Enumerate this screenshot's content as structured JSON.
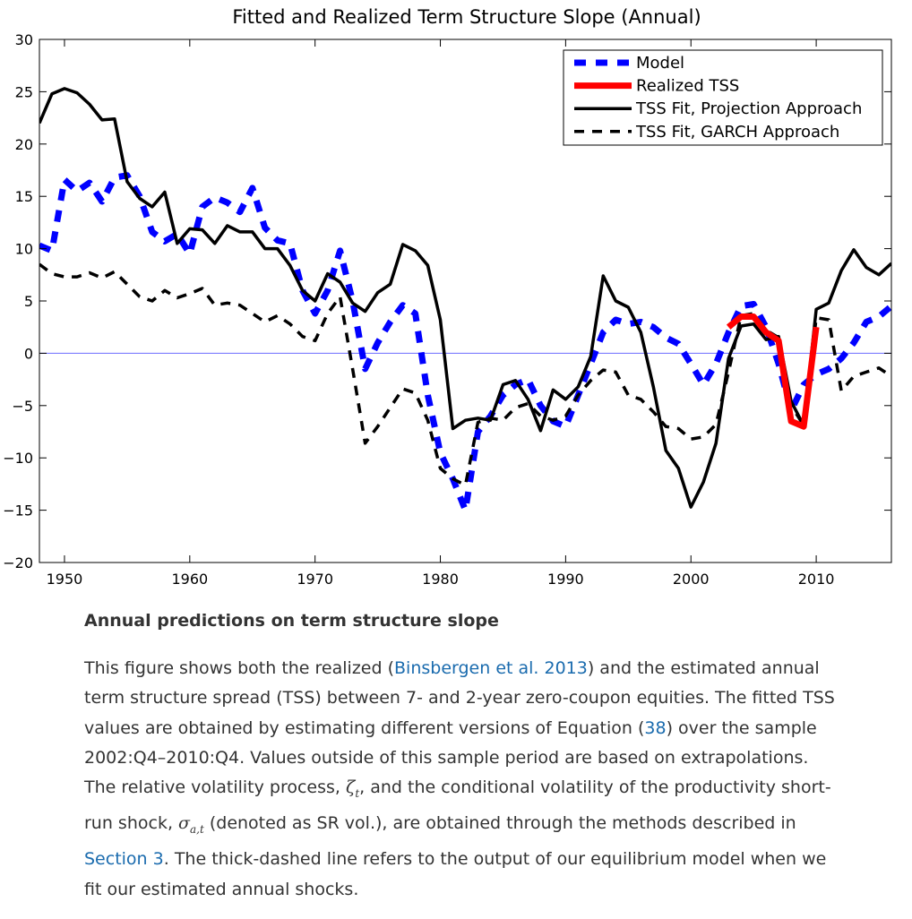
{
  "chart_data": {
    "type": "line",
    "title": "Fitted and Realized Term Structure Slope (Annual)",
    "xlim": [
      1948,
      2016
    ],
    "ylim": [
      -20,
      30
    ],
    "xticks": [
      1950,
      1960,
      1970,
      1980,
      1990,
      2000,
      2010
    ],
    "yticks": [
      -20,
      -15,
      -10,
      -5,
      0,
      5,
      10,
      15,
      20,
      25,
      30
    ],
    "xtick_labels": [
      "1950",
      "1960",
      "1970",
      "1980",
      "1990",
      "2000",
      "2010"
    ],
    "ytick_labels": [
      "−20",
      "−15",
      "−10",
      "−5",
      "0",
      "5",
      "10",
      "15",
      "20",
      "25",
      "30"
    ],
    "zero_line": true,
    "grid": false,
    "legend_position": "top-right",
    "series": [
      {
        "name": "Model",
        "color": "#0000ff",
        "style": "thick-dashed",
        "x": [
          1948,
          1949,
          1950,
          1951,
          1952,
          1953,
          1954,
          1955,
          1956,
          1957,
          1958,
          1959,
          1960,
          1961,
          1962,
          1963,
          1964,
          1965,
          1966,
          1967,
          1968,
          1969,
          1970,
          1971,
          1972,
          1973,
          1974,
          1975,
          1976,
          1977,
          1978,
          1979,
          1980,
          1981,
          1982,
          1983,
          1984,
          1985,
          1986,
          1987,
          1988,
          1989,
          1990,
          1991,
          1992,
          1993,
          1994,
          1995,
          1996,
          1997,
          1998,
          1999,
          2000,
          2001,
          2002,
          2003,
          2004,
          2005,
          2006,
          2007,
          2008,
          2009,
          2010,
          2011,
          2012,
          2013,
          2014,
          2015,
          2016
        ],
        "values": [
          10.3,
          9.8,
          16.6,
          15.5,
          16.3,
          14.5,
          16.8,
          17.0,
          15.0,
          11.6,
          10.7,
          11.4,
          9.5,
          14.0,
          14.9,
          14.4,
          13.5,
          15.8,
          12.0,
          10.8,
          10.5,
          6.0,
          3.8,
          6.0,
          9.8,
          5.0,
          -1.5,
          1.0,
          3.0,
          4.6,
          3.8,
          -4.0,
          -9.5,
          -12.0,
          -15.0,
          -7.5,
          -6.0,
          -4.0,
          -3.0,
          -2.5,
          -5.0,
          -6.5,
          -7.0,
          -4.0,
          -1.0,
          2.0,
          3.2,
          2.8,
          3.0,
          2.5,
          1.5,
          0.9,
          -1.0,
          -3.0,
          -1.0,
          2.0,
          4.5,
          4.7,
          2.5,
          -1.0,
          -5.5,
          -3.0,
          -2.0,
          -1.5,
          -0.5,
          1.0,
          3.0,
          3.5,
          4.5
        ]
      },
      {
        "name": "Realized TSS",
        "color": "#ff0000",
        "style": "thick-solid",
        "x": [
          2003,
          2004,
          2005,
          2006,
          2007,
          2008,
          2009,
          2010
        ],
        "values": [
          2.5,
          3.5,
          3.5,
          2.0,
          1.2,
          -6.5,
          -7.0,
          2.5
        ]
      },
      {
        "name": "TSS Fit, Projection Approach",
        "color": "#000000",
        "style": "solid",
        "x": [
          1948,
          1949,
          1950,
          1951,
          1952,
          1953,
          1954,
          1955,
          1956,
          1957,
          1958,
          1959,
          1960,
          1961,
          1962,
          1963,
          1964,
          1965,
          1966,
          1967,
          1968,
          1969,
          1970,
          1971,
          1972,
          1973,
          1974,
          1975,
          1976,
          1977,
          1978,
          1979,
          1980,
          1981,
          1982,
          1983,
          1984,
          1985,
          1986,
          1987,
          1988,
          1989,
          1990,
          1991,
          1992,
          1993,
          1994,
          1995,
          1996,
          1997,
          1998,
          1999,
          2000,
          2001,
          2002,
          2003,
          2004,
          2005,
          2006,
          2007,
          2008,
          2009,
          2010,
          2011,
          2012,
          2013,
          2014,
          2015,
          2016
        ],
        "values": [
          22.0,
          24.8,
          25.3,
          24.9,
          23.8,
          22.3,
          22.4,
          16.4,
          14.8,
          14.0,
          15.4,
          10.5,
          11.9,
          11.8,
          10.5,
          12.2,
          11.6,
          11.6,
          10.0,
          10.0,
          8.4,
          6.0,
          5.0,
          7.6,
          6.8,
          4.8,
          4.0,
          5.8,
          6.6,
          10.4,
          9.8,
          8.4,
          3.2,
          -7.2,
          -6.4,
          -6.2,
          -6.4,
          -3.0,
          -2.6,
          -4.4,
          -7.4,
          -3.5,
          -4.4,
          -3.2,
          -0.3,
          7.4,
          5.0,
          4.4,
          2.0,
          -3.2,
          -9.3,
          -11.0,
          -14.7,
          -12.3,
          -8.6,
          -0.5,
          2.6,
          2.8,
          1.3,
          1.6,
          -4.6,
          -6.9,
          4.2,
          4.8,
          7.9,
          9.9,
          8.2,
          7.5,
          8.6
        ]
      },
      {
        "name": "TSS Fit, GARCH Approach",
        "color": "#000000",
        "style": "dashed",
        "x": [
          1948,
          1949,
          1950,
          1951,
          1952,
          1953,
          1954,
          1955,
          1956,
          1957,
          1958,
          1959,
          1960,
          1961,
          1962,
          1963,
          1964,
          1965,
          1966,
          1967,
          1968,
          1969,
          1970,
          1971,
          1972,
          1973,
          1974,
          1975,
          1976,
          1977,
          1978,
          1979,
          1980,
          1981,
          1982,
          1983,
          1984,
          1985,
          1986,
          1987,
          1988,
          1989,
          1990,
          1991,
          1992,
          1993,
          1994,
          1995,
          1996,
          1997,
          1998,
          1999,
          2000,
          2001,
          2002,
          2003,
          2004,
          2005,
          2006,
          2007,
          2008,
          2009,
          2010,
          2011,
          2012,
          2013,
          2014,
          2015,
          2016
        ],
        "values": [
          8.5,
          7.6,
          7.3,
          7.3,
          7.7,
          7.2,
          7.8,
          6.6,
          5.4,
          5.0,
          6.0,
          5.3,
          5.7,
          6.2,
          4.6,
          4.8,
          4.6,
          3.8,
          3.0,
          3.6,
          2.8,
          1.6,
          1.2,
          3.8,
          5.4,
          -1.5,
          -8.6,
          -7.0,
          -5.2,
          -3.4,
          -3.8,
          -6.4,
          -11.0,
          -12.0,
          -12.6,
          -6.6,
          -6.2,
          -6.4,
          -5.2,
          -4.8,
          -6.0,
          -6.4,
          -6.0,
          -4.0,
          -2.6,
          -1.6,
          -1.8,
          -4.0,
          -4.4,
          -5.6,
          -7.0,
          -7.2,
          -8.2,
          -8.0,
          -6.8,
          -1.8,
          3.6,
          3.8,
          2.2,
          1.5,
          -5.0,
          -6.9,
          3.4,
          3.2,
          -3.6,
          -2.2,
          -1.8,
          -1.4,
          -2.2
        ]
      }
    ]
  },
  "caption": {
    "title": "Annual predictions on term structure slope",
    "p1": "This figure shows both the realized (",
    "link1": "Binsbergen et al. 2013",
    "p2": ") and the estimated annual term structure spread (TSS) between 7- and 2-year zero-coupon equities. The fitted TSS values are obtained by estimating different versions of Equation (",
    "link2": "38",
    "p3": ") over the sample 2002:Q4–2010:Q4. Values outside of this sample period are based on extrapolations. The relative volatility process, ",
    "zeta_sym": "ζ",
    "zeta_sub": "t",
    "p4": ", and the conditional volatility of the productivity short-run shock, ",
    "sigma_sym": "σ",
    "sigma_sub": "a,t",
    "p5": " (denoted as SR vol.), are obtained through the methods described in ",
    "link3": "Section 3",
    "p6": ". The thick-dashed line refers to the output of our equilibrium model when we fit our estimated annual shocks."
  }
}
